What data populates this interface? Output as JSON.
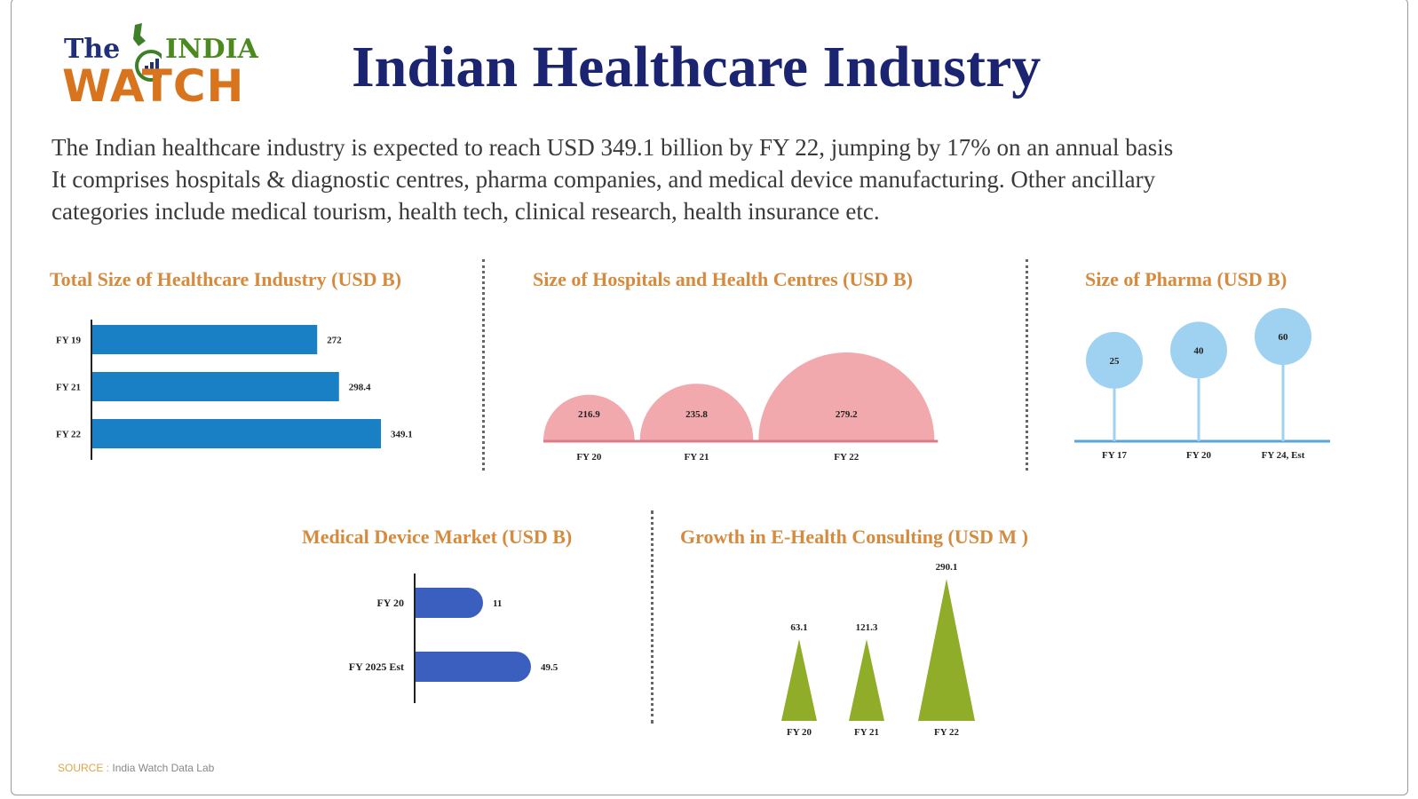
{
  "brand": {
    "the": "The",
    "india": "INDIA",
    "watch": "WATCH"
  },
  "title": "Indian Healthcare Industry",
  "intro": [
    "The Indian healthcare industry is expected to reach USD 349.1 billion by FY 22, jumping by 17% on an annual basis",
    "It comprises hospitals & diagnostic centres, pharma companies, and medical device manufacturing. Other ancillary",
    "categories include medical tourism, health tech, clinical research, health insurance etc."
  ],
  "colors": {
    "bar_blue": "#1a80c6",
    "arch_pink": "#f2a9ae",
    "bubble_blue": "#9fd2f0",
    "device_blue": "#3b5fbf",
    "triangle_green": "#8fad28",
    "title_navy": "#1b2470",
    "chart_title_orange": "#d58a3d"
  },
  "chart_data": [
    {
      "type": "bar",
      "orientation": "horizontal",
      "title": "Total Size of Healthcare Industry (USD B)",
      "categories": [
        "FY 19",
        "FY 21",
        "FY 22"
      ],
      "values": [
        272,
        298.4,
        349.1
      ],
      "value_labels": [
        "272",
        "298.4",
        "349.1"
      ]
    },
    {
      "type": "area",
      "style": "semicircles",
      "title": "Size of Hospitals and Health Centres (USD B)",
      "categories": [
        "FY 20",
        "FY 21",
        "FY 22"
      ],
      "values": [
        216.9,
        235.8,
        279.2
      ],
      "value_labels": [
        "216.9",
        "235.8",
        "279.2"
      ]
    },
    {
      "type": "scatter",
      "style": "lollipop bubbles",
      "title": "Size of Pharma (USD B)",
      "categories": [
        "FY 17",
        "FY 20",
        "FY 24, Est"
      ],
      "values": [
        25,
        40,
        60
      ],
      "value_labels": [
        "25",
        "40",
        "60"
      ]
    },
    {
      "type": "bar",
      "orientation": "horizontal",
      "style": "rounded",
      "title": "Medical Device Market  (USD B)",
      "categories": [
        "FY 20",
        "FY 2025 Est"
      ],
      "values": [
        11,
        49.5
      ],
      "value_labels": [
        "11",
        "49.5"
      ]
    },
    {
      "type": "bar",
      "style": "triangles",
      "title": "Growth in E-Health Consulting (USD M )",
      "categories": [
        "FY 20",
        "FY 21",
        "FY 22"
      ],
      "values": [
        63.1,
        121.3,
        290.1
      ],
      "value_labels": [
        "63.1",
        "121.3",
        "290.1"
      ]
    }
  ],
  "source": {
    "label": "SOURCE :",
    "text": "India Watch Data Lab"
  }
}
